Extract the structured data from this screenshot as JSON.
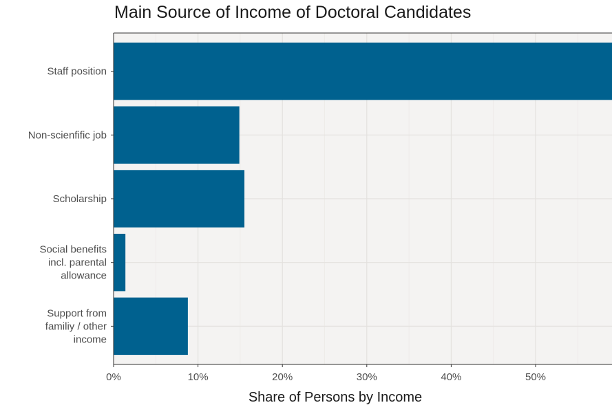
{
  "chart_data": {
    "type": "bar",
    "orientation": "horizontal",
    "title": "Main Source of Income of Doctoral Candidates",
    "xlabel": "Share of Persons by Income",
    "ylabel": "",
    "categories": [
      [
        "Staff position"
      ],
      [
        "Non-scienfific job"
      ],
      [
        "Scholarship"
      ],
      [
        "Social benefits",
        "incl. parental",
        "allowance"
      ],
      [
        "Support from",
        "familiy / other",
        "income"
      ]
    ],
    "values": [
      59.5,
      14.9,
      15.5,
      1.4,
      8.8
    ],
    "xlim": [
      0,
      59
    ],
    "xticks": [
      0,
      10,
      20,
      30,
      40,
      50
    ],
    "xtick_labels": [
      "0%",
      "10%",
      "20%",
      "30%",
      "40%",
      "50%"
    ],
    "grid": true,
    "colors": {
      "bar": "#00618f",
      "panel": "#f4f3f2",
      "grid_major": "#e3e1de",
      "grid_minor": "#ebe9e6",
      "border": "#333333"
    }
  }
}
